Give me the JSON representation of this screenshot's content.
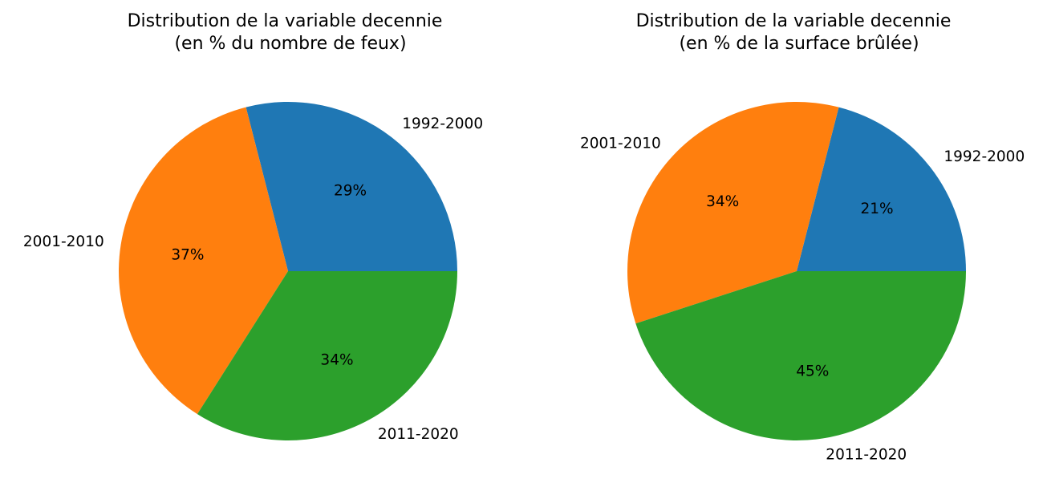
{
  "chart_data": [
    {
      "type": "pie",
      "title_line1": "Distribution de la variable decennie",
      "title_line2": "(en % du nombre de feux)",
      "categories": [
        "1992-2000",
        "2001-2010",
        "2011-2020"
      ],
      "values": [
        29,
        37,
        34
      ],
      "value_labels": [
        "29%",
        "37%",
        "34%"
      ],
      "colors": [
        "#1f77b4",
        "#ff7f0e",
        "#2ca02c"
      ],
      "start_angle_deg": 0,
      "direction": "counterclockwise"
    },
    {
      "type": "pie",
      "title_line1": "Distribution de la variable decennie",
      "title_line2": "(en % de la surface brûlée)",
      "categories": [
        "1992-2000",
        "2001-2010",
        "2011-2020"
      ],
      "values": [
        21,
        34,
        45
      ],
      "value_labels": [
        "21%",
        "34%",
        "45%"
      ],
      "colors": [
        "#1f77b4",
        "#ff7f0e",
        "#2ca02c"
      ],
      "start_angle_deg": 0,
      "direction": "counterclockwise"
    }
  ]
}
